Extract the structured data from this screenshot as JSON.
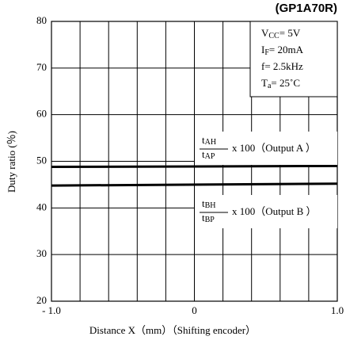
{
  "chart_data": {
    "type": "line",
    "title": "(GP1A70R)",
    "x_label": "Distance X（mm）（Shifting encoder）",
    "y_label": "Duty ratio (％)",
    "x": [
      -1,
      1
    ],
    "series": [
      {
        "name": "Output A",
        "color": "#000000",
        "values": [
          48.8,
          49
        ]
      },
      {
        "name": "Output B",
        "color": "#000000",
        "values": [
          44.8,
          45.2
        ]
      }
    ],
    "xlim": [
      -1,
      1
    ],
    "xticks": [
      {
        "value": -1,
        "label": "- 1.0"
      },
      0,
      {
        "value": 1,
        "label": "1.0"
      }
    ],
    "xgrid": [
      -0.8,
      -0.6,
      -0.4,
      -0.2,
      0.2,
      0.4,
      0.6,
      0.8
    ],
    "ylim": [
      20,
      80
    ],
    "yticks": [
      20,
      30,
      40,
      50,
      60,
      70,
      80
    ],
    "grid": true,
    "conditions": [
      {
        "base": "V",
        "sub": "CC",
        "rest": "= 5V"
      },
      {
        "base": "I",
        "sub": "F",
        "rest": "= 20mA"
      },
      {
        "base": "f= 2.5kHz"
      },
      {
        "base": "T",
        "sub": "a",
        "rest": "= 25˚C"
      }
    ],
    "annotations": [
      {
        "num_base": "t",
        "num_sub": "AH",
        "den_base": "t",
        "den_sub": "AP",
        "text": "x 100（Output A ）"
      },
      {
        "num_base": "t",
        "num_sub": "BH",
        "den_base": "t",
        "den_sub": "BP",
        "text": "x 100（Output B ）"
      }
    ]
  }
}
